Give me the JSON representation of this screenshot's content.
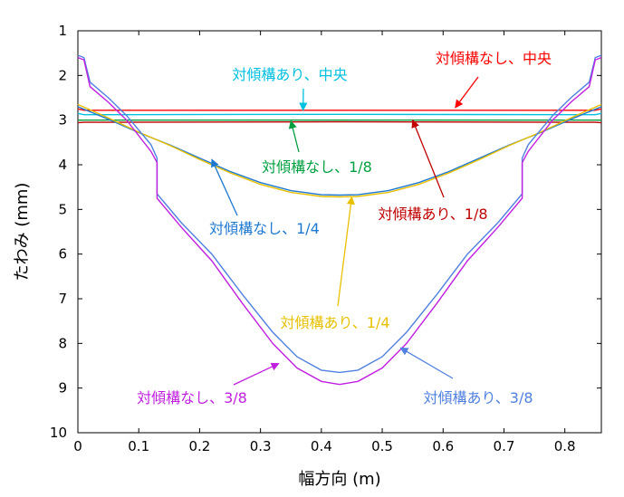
{
  "chart_data": {
    "type": "line",
    "xlabel": "幅方向 (m)",
    "ylabel": "たわみ (mm)",
    "xlim": [
      0,
      0.86
    ],
    "ylim": [
      1,
      10
    ],
    "y_inverted": true,
    "grid": false,
    "x_ticks": [
      "0",
      "0.1",
      "0.2",
      "0.3",
      "0.4",
      "0.5",
      "0.6",
      "0.7",
      "0.8"
    ],
    "y_ticks": [
      "1",
      "2",
      "3",
      "4",
      "5",
      "6",
      "7",
      "8",
      "9",
      "10"
    ],
    "series": [
      {
        "name": "対傾構なし、中央",
        "color": "#ff0000",
        "arrow_to": [
          0.62,
          2.72
        ],
        "x": [
          0,
          0.01,
          0.43,
          0.85,
          0.86
        ],
        "y": [
          2.75,
          2.78,
          2.78,
          2.78,
          2.75
        ]
      },
      {
        "name": "対傾構あり、中央",
        "color": "#00c0e0",
        "arrow_to": [
          0.37,
          2.78
        ],
        "x": [
          0,
          0.01,
          0.43,
          0.85,
          0.86
        ],
        "y": [
          2.85,
          2.88,
          2.87,
          2.88,
          2.85
        ]
      },
      {
        "name": "対傾構なし、1/8",
        "color": "#00a040",
        "arrow_to": [
          0.35,
          3.02
        ],
        "x": [
          0,
          0.01,
          0.43,
          0.85,
          0.86
        ],
        "y": [
          3.0,
          3.0,
          3.0,
          3.0,
          3.0
        ]
      },
      {
        "name": "対傾構あり、1/8",
        "color": "#c00000",
        "arrow_to": [
          0.55,
          3.0
        ],
        "x": [
          0,
          0.01,
          0.43,
          0.85,
          0.86
        ],
        "y": [
          3.06,
          3.05,
          3.04,
          3.05,
          3.06
        ]
      },
      {
        "name": "対傾構なし、1/4",
        "color": "#1e78d0",
        "arrow_to": [
          0.22,
          3.88
        ],
        "x": [
          0,
          0.05,
          0.1,
          0.15,
          0.2,
          0.25,
          0.3,
          0.35,
          0.4,
          0.43,
          0.46,
          0.51,
          0.56,
          0.61,
          0.66,
          0.71,
          0.76,
          0.81,
          0.86
        ],
        "y": [
          2.7,
          2.98,
          3.28,
          3.55,
          3.85,
          4.15,
          4.4,
          4.58,
          4.67,
          4.68,
          4.67,
          4.58,
          4.4,
          4.15,
          3.85,
          3.55,
          3.28,
          2.98,
          2.7
        ]
      },
      {
        "name": "対傾構あり、1/4",
        "color": "#e8c000",
        "arrow_to": [
          0.45,
          4.72
        ],
        "x": [
          0,
          0.05,
          0.1,
          0.15,
          0.2,
          0.25,
          0.3,
          0.35,
          0.4,
          0.43,
          0.46,
          0.51,
          0.56,
          0.61,
          0.66,
          0.71,
          0.76,
          0.81,
          0.86
        ],
        "y": [
          2.65,
          2.95,
          3.27,
          3.56,
          3.88,
          4.18,
          4.44,
          4.62,
          4.71,
          4.72,
          4.71,
          4.62,
          4.44,
          4.18,
          3.88,
          3.56,
          3.27,
          2.95,
          2.65
        ]
      },
      {
        "name": "対傾構あり、3/8",
        "color": "#5080e0",
        "arrow_to": [
          0.53,
          8.1
        ],
        "x": [
          0,
          0.01,
          0.02,
          0.05,
          0.08,
          0.12,
          0.13,
          0.13,
          0.17,
          0.22,
          0.27,
          0.32,
          0.36,
          0.4,
          0.43,
          0.46,
          0.5,
          0.54,
          0.59,
          0.64,
          0.69,
          0.73,
          0.73,
          0.74,
          0.78,
          0.81,
          0.84,
          0.85,
          0.86
        ],
        "y": [
          1.55,
          1.6,
          2.15,
          2.5,
          2.9,
          3.55,
          3.85,
          4.65,
          5.3,
          6.0,
          6.9,
          7.75,
          8.3,
          8.6,
          8.65,
          8.6,
          8.3,
          7.75,
          6.9,
          6.0,
          5.3,
          4.65,
          3.85,
          3.55,
          2.9,
          2.5,
          2.15,
          1.6,
          1.55
        ]
      },
      {
        "name": "対傾構なし、3/8",
        "color": "#c020e0",
        "arrow_to": [
          0.33,
          8.45
        ],
        "x": [
          0,
          0.01,
          0.02,
          0.05,
          0.08,
          0.12,
          0.13,
          0.13,
          0.17,
          0.22,
          0.27,
          0.32,
          0.36,
          0.4,
          0.43,
          0.46,
          0.5,
          0.54,
          0.59,
          0.64,
          0.69,
          0.73,
          0.73,
          0.74,
          0.78,
          0.81,
          0.84,
          0.85,
          0.86
        ],
        "y": [
          1.6,
          1.65,
          2.25,
          2.6,
          3.0,
          3.7,
          3.95,
          4.75,
          5.4,
          6.15,
          7.1,
          8.0,
          8.55,
          8.85,
          8.92,
          8.85,
          8.55,
          8.0,
          7.1,
          6.15,
          5.4,
          4.75,
          3.95,
          3.7,
          3.0,
          2.6,
          2.25,
          1.65,
          1.6
        ]
      }
    ]
  }
}
